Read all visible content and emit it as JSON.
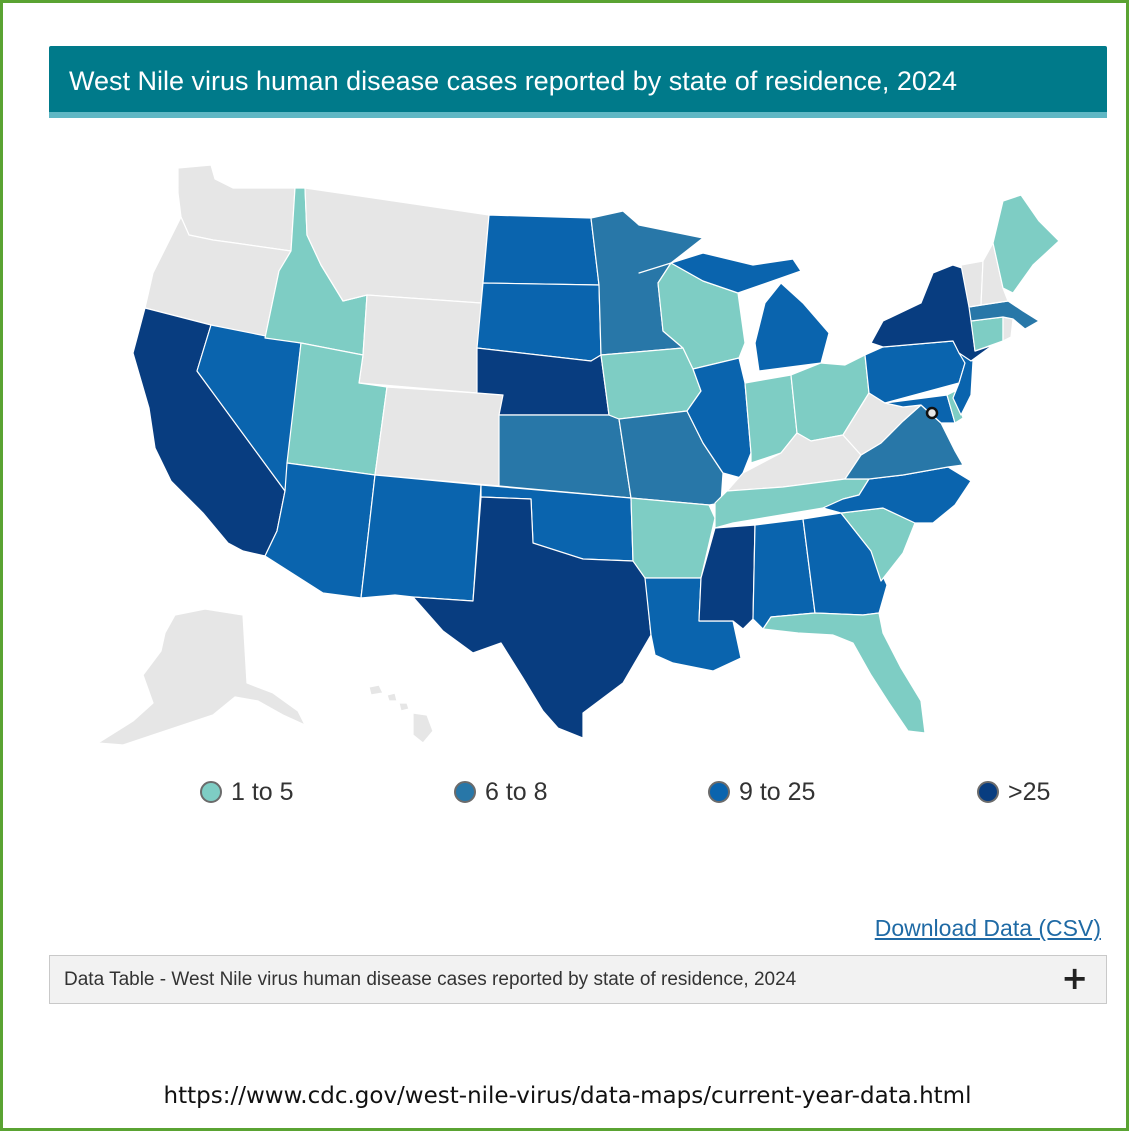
{
  "header": {
    "title": "West Nile virus human disease cases reported by state of residence, 2024"
  },
  "colors": {
    "none": "#e6e6e6",
    "cat1": "#7ecdc4",
    "cat2": "#2877a8",
    "cat3": "#0a64ae",
    "cat4": "#083d80",
    "stroke": "#ffffff",
    "header_bg": "#007a8a",
    "link": "#1f6aa5"
  },
  "legend": {
    "items": [
      {
        "label": "1 to 5",
        "category": "cat1",
        "color": "#7ecdc4"
      },
      {
        "label": "6 to 8",
        "category": "cat2",
        "color": "#2877a8"
      },
      {
        "label": "9 to 25",
        "category": "cat3",
        "color": "#0a64ae"
      },
      {
        "label": ">25",
        "category": "cat4",
        "color": "#083d80"
      }
    ]
  },
  "map_data": {
    "type": "choropleth",
    "unit": "state",
    "categories": [
      "none",
      "1 to 5",
      "6 to 8",
      "9 to 25",
      ">25"
    ],
    "states": {
      "WA": "none",
      "OR": "none",
      "CA": ">25",
      "NV": "9 to 25",
      "ID": "1 to 5",
      "MT": "none",
      "WY": "none",
      "UT": "1 to 5",
      "AZ": "9 to 25",
      "CO": "none",
      "NM": "9 to 25",
      "ND": "9 to 25",
      "SD": "9 to 25",
      "NE": ">25",
      "KS": "6 to 8",
      "OK": "9 to 25",
      "TX": ">25",
      "MN": "6 to 8",
      "IA": "1 to 5",
      "MO": "6 to 8",
      "AR": "1 to 5",
      "LA": "9 to 25",
      "WI": "1 to 5",
      "IL": "9 to 25",
      "MI": "9 to 25",
      "IN": "1 to 5",
      "OH": "1 to 5",
      "KY": "none",
      "TN": "1 to 5",
      "MS": ">25",
      "AL": "9 to 25",
      "GA": "9 to 25",
      "FL": "1 to 5",
      "SC": "1 to 5",
      "NC": "9 to 25",
      "VA": "6 to 8",
      "WV": "none",
      "PA": "9 to 25",
      "NY": ">25",
      "NJ": "9 to 25",
      "DE": "1 to 5",
      "MD": "9 to 25",
      "DC": "none",
      "CT": "1 to 5",
      "RI": "none",
      "MA": "6 to 8",
      "VT": "none",
      "NH": "none",
      "ME": "1 to 5",
      "AK": "none",
      "HI": "none"
    }
  },
  "download": {
    "label": "Download Data (CSV)"
  },
  "data_table": {
    "label": "Data Table - West Nile virus human disease cases reported by state of residence, 2024",
    "expand_symbol": "+"
  },
  "source": {
    "url": "https://www.cdc.gov/west-nile-virus/data-maps/current-year-data.html"
  }
}
